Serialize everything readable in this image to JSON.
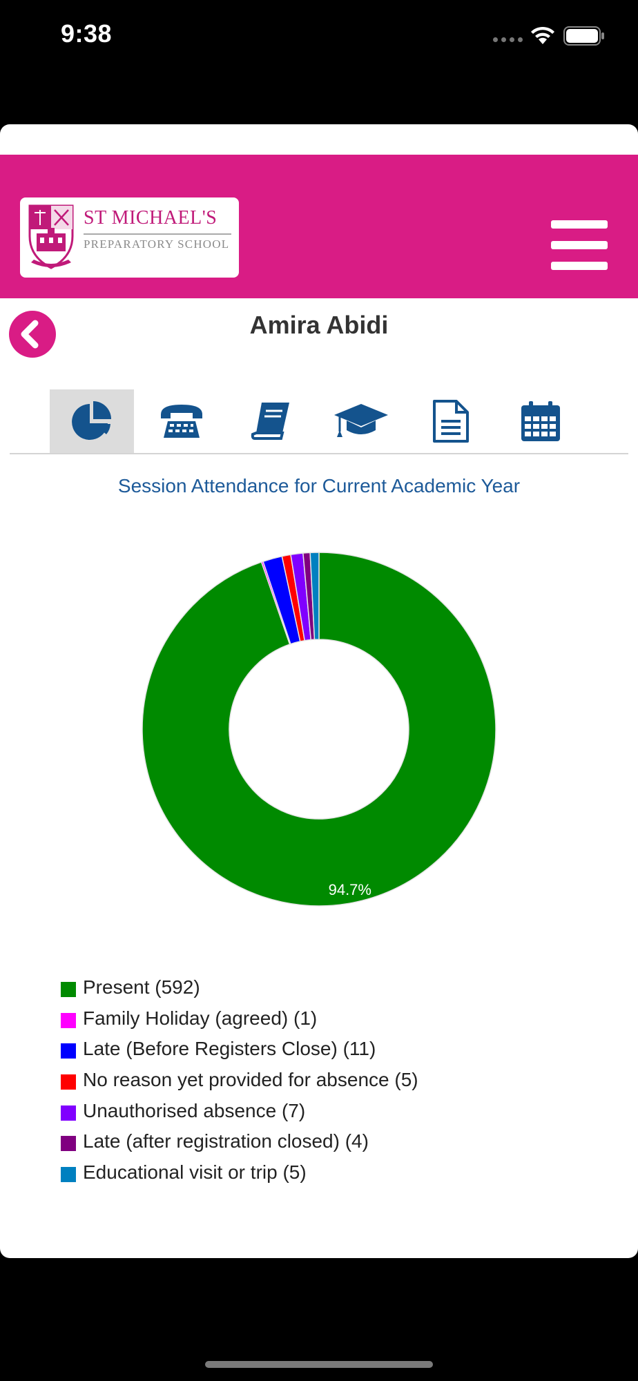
{
  "status_bar": {
    "time": "9:38"
  },
  "header": {
    "school_name_line1": "ST MICHAEL'S",
    "school_name_line2": "PREPARATORY SCHOOL",
    "brand_color": "#d91c85",
    "menu_icon": "hamburger-menu-icon"
  },
  "student": {
    "name": "Amira Abidi",
    "back_icon": "chevron-left-icon"
  },
  "tabs": [
    {
      "icon": "pie-chart-icon",
      "active": true
    },
    {
      "icon": "telephone-icon",
      "active": false
    },
    {
      "icon": "book-icon",
      "active": false
    },
    {
      "icon": "graduation-cap-icon",
      "active": false
    },
    {
      "icon": "document-icon",
      "active": false
    },
    {
      "icon": "calendar-icon",
      "active": false
    }
  ],
  "chart_data": {
    "type": "pie",
    "title": "Session Attendance for Current Academic Year",
    "donut": true,
    "slice_label": "94.7%",
    "legend_position": "bottom",
    "slices": [
      {
        "label": "Present (592)",
        "value": 592,
        "color": "#008a00"
      },
      {
        "label": "Family Holiday (agreed) (1)",
        "value": 1,
        "color": "#ff00ff"
      },
      {
        "label": "Late (Before Registers Close) (11)",
        "value": 11,
        "color": "#0000ff"
      },
      {
        "label": "No reason yet provided for absence (5)",
        "value": 5,
        "color": "#ff0000"
      },
      {
        "label": "Unauthorised absence (7)",
        "value": 7,
        "color": "#8000ff"
      },
      {
        "label": "Late (after registration closed) (4)",
        "value": 4,
        "color": "#800080"
      },
      {
        "label": "Educational visit or trip (5)",
        "value": 5,
        "color": "#0080c0"
      }
    ]
  }
}
